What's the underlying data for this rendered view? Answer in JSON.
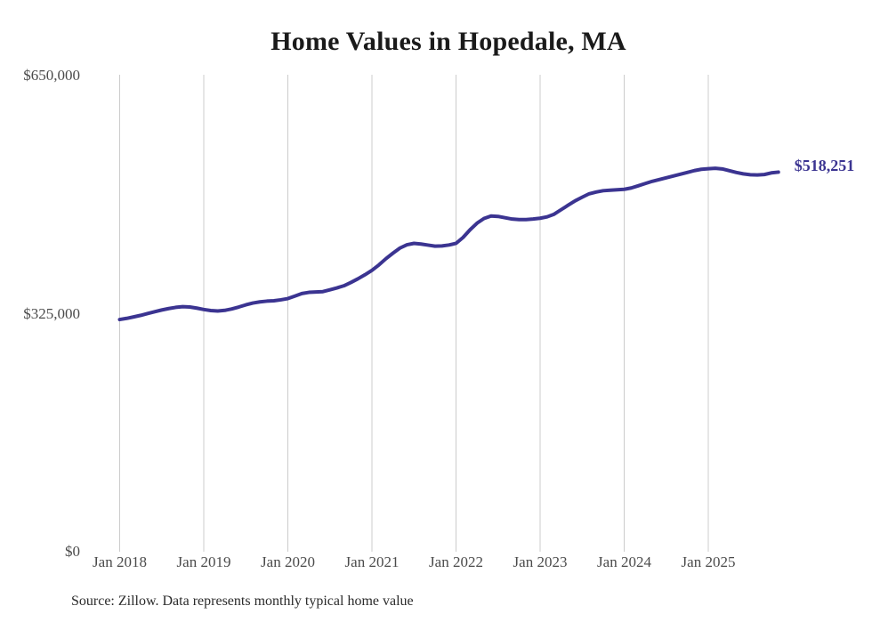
{
  "title": "Home Values in Hopedale, MA",
  "source_note": "Source: Zillow. Data represents monthly typical home value",
  "colors": {
    "line": "#3b3491",
    "grid": "#cccccc",
    "axis_text": "#4b4b4b",
    "title_text": "#1a1a1a",
    "source_text": "#2b2b2b",
    "annotation_text": "#3b3491",
    "background": "#ffffff"
  },
  "chart_data": {
    "type": "line",
    "title": "Home Values in Hopedale, MA",
    "series_name": "Typical home value",
    "x_freq": "monthly",
    "x_start": "2018-01",
    "x_end": "2025-11",
    "x": [
      "2018-01",
      "2018-02",
      "2018-03",
      "2018-04",
      "2018-05",
      "2018-06",
      "2018-07",
      "2018-08",
      "2018-09",
      "2018-10",
      "2018-11",
      "2018-12",
      "2019-01",
      "2019-02",
      "2019-03",
      "2019-04",
      "2019-05",
      "2019-06",
      "2019-07",
      "2019-08",
      "2019-09",
      "2019-10",
      "2019-11",
      "2019-12",
      "2020-01",
      "2020-02",
      "2020-03",
      "2020-04",
      "2020-05",
      "2020-06",
      "2020-07",
      "2020-08",
      "2020-09",
      "2020-10",
      "2020-11",
      "2020-12",
      "2021-01",
      "2021-02",
      "2021-03",
      "2021-04",
      "2021-05",
      "2021-06",
      "2021-07",
      "2021-08",
      "2021-09",
      "2021-10",
      "2021-11",
      "2021-12",
      "2022-01",
      "2022-02",
      "2022-03",
      "2022-04",
      "2022-05",
      "2022-06",
      "2022-07",
      "2022-08",
      "2022-09",
      "2022-10",
      "2022-11",
      "2022-12",
      "2023-01",
      "2023-02",
      "2023-03",
      "2023-04",
      "2023-05",
      "2023-06",
      "2023-07",
      "2023-08",
      "2023-09",
      "2023-10",
      "2023-11",
      "2023-12",
      "2024-01",
      "2024-02",
      "2024-03",
      "2024-04",
      "2024-05",
      "2024-06",
      "2024-07",
      "2024-08",
      "2024-09",
      "2024-10",
      "2024-11",
      "2024-12",
      "2025-01",
      "2025-02",
      "2025-03",
      "2025-04",
      "2025-05",
      "2025-06",
      "2025-07",
      "2025-08",
      "2025-09",
      "2025-10",
      "2025-11"
    ],
    "values": [
      317000,
      318600,
      320600,
      322700,
      325200,
      327700,
      330000,
      332000,
      333600,
      334600,
      334100,
      332600,
      330700,
      329300,
      328600,
      329500,
      331500,
      334100,
      337000,
      339500,
      341100,
      342100,
      342600,
      343900,
      345600,
      349000,
      352500,
      354100,
      354600,
      355100,
      357600,
      360200,
      363100,
      367600,
      372600,
      378100,
      384100,
      391600,
      400100,
      407600,
      414600,
      419100,
      421000,
      420100,
      418600,
      417200,
      417500,
      418800,
      421000,
      429000,
      439500,
      448600,
      455000,
      458400,
      457800,
      456000,
      454200,
      453500,
      453500,
      454200,
      455300,
      457200,
      460800,
      467000,
      473100,
      479100,
      484000,
      488700,
      491100,
      492900,
      493600,
      494200,
      494800,
      496600,
      499600,
      502700,
      505700,
      508100,
      510500,
      513000,
      515400,
      517800,
      520300,
      522100,
      522900,
      523500,
      522600,
      520200,
      517800,
      515900,
      514700,
      514400,
      515000,
      517200,
      518251
    ],
    "end_value": 518251,
    "end_label": "$518,251",
    "x_tick_labels": [
      "Jan 2018",
      "Jan 2019",
      "Jan 2020",
      "Jan 2021",
      "Jan 2022",
      "Jan 2023",
      "Jan 2024",
      "Jan 2025"
    ],
    "y_tick_labels": [
      "$0",
      "$325,000",
      "$650,000"
    ],
    "y_tick_values": [
      0,
      325000,
      650000
    ],
    "ylim": [
      0,
      650000
    ],
    "grid": "vertical-only",
    "legend": "none"
  }
}
